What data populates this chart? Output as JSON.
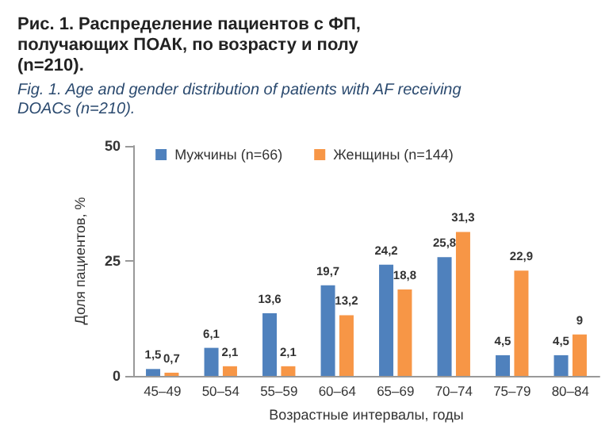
{
  "chart_data": {
    "type": "bar",
    "title": "Рис. 1. Распределение пациентов с ФП, получающих ПОАК, по возрасту и полу (n=210).",
    "subtitle": "Fig. 1. Age and gender distribution of patients with AF receiving DOACs (n=210).",
    "xlabel": "Возрастные интервалы, годы",
    "ylabel": "Доля пациентов, %",
    "categories": [
      "45–49",
      "50–54",
      "55–59",
      "60–64",
      "65–69",
      "70–74",
      "75–79",
      "80–84"
    ],
    "series": [
      {
        "name": "Мужчины (n=66)",
        "color": "#4f81bd",
        "values": [
          1.5,
          6.1,
          13.6,
          19.7,
          24.2,
          25.8,
          4.5,
          4.5
        ],
        "value_labels": [
          "1,5",
          "6,1",
          "13,6",
          "19,7",
          "24,2",
          "25,8",
          "4,5",
          "4,5"
        ]
      },
      {
        "name": "Женщины (n=144)",
        "color": "#f79646",
        "values": [
          0.7,
          2.1,
          2.1,
          13.2,
          18.8,
          31.3,
          22.9,
          9
        ],
        "value_labels": [
          "0,7",
          "2,1",
          "2,1",
          "13,2",
          "18,8",
          "31,3",
          "22,9",
          "9"
        ]
      }
    ],
    "ylim": [
      0,
      50
    ],
    "yticks": [
      0,
      25,
      50
    ],
    "grid": false,
    "legend": "top"
  }
}
